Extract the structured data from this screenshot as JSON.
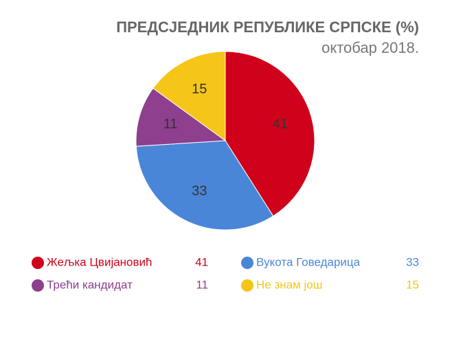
{
  "chart_data": {
    "type": "pie",
    "title": "ПРЕДСЈЕДНИК РЕПУБЛИКЕ СРПСКЕ (%)",
    "subtitle": "октобар 2018.",
    "categories": [
      "Жељка Цвијановић",
      "Вукота Говедарица",
      "Трећи кандидат",
      "Не знам још"
    ],
    "values": [
      41,
      33,
      11,
      15
    ],
    "colors": [
      "#d0021b",
      "#4a86d8",
      "#8e3f8e",
      "#f5c518"
    ]
  }
}
